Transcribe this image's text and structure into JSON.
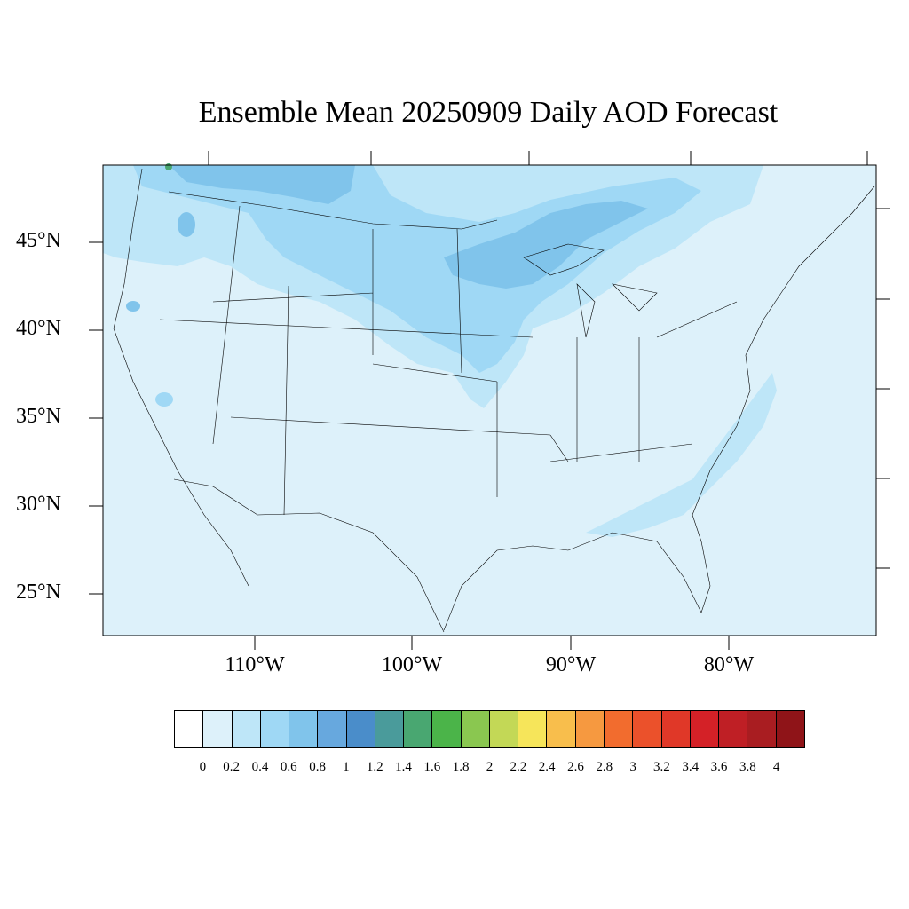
{
  "title": "Ensemble Mean 20250909 Daily AOD Forecast",
  "map": {
    "background_color": "#DDF1FA",
    "lat_labels": [
      "45°N",
      "40°N",
      "35°N",
      "30°N",
      "25°N"
    ],
    "lon_labels": [
      "110°W",
      "100°W",
      "90°W",
      "80°W"
    ]
  },
  "colorbar": {
    "colors": [
      "#FFFFFF",
      "#DDF1FA",
      "#BEE6F8",
      "#9FD8F5",
      "#80C4EB",
      "#67A8DE",
      "#4A8DCA",
      "#4A9B9B",
      "#49A771",
      "#4BB449",
      "#8AC750",
      "#C3D856",
      "#F6E55A",
      "#F8BE4C",
      "#F69940",
      "#F26C2E",
      "#EB512B",
      "#E03828",
      "#D42127",
      "#BF1F25",
      "#A91D21",
      "#8F1418"
    ],
    "labels": [
      "0",
      "0.2",
      "0.4",
      "0.6",
      "0.8",
      "1",
      "1.2",
      "1.4",
      "1.6",
      "1.8",
      "2",
      "2.2",
      "2.4",
      "2.6",
      "2.8",
      "3",
      "3.2",
      "3.4",
      "3.6",
      "3.8",
      "4"
    ]
  }
}
